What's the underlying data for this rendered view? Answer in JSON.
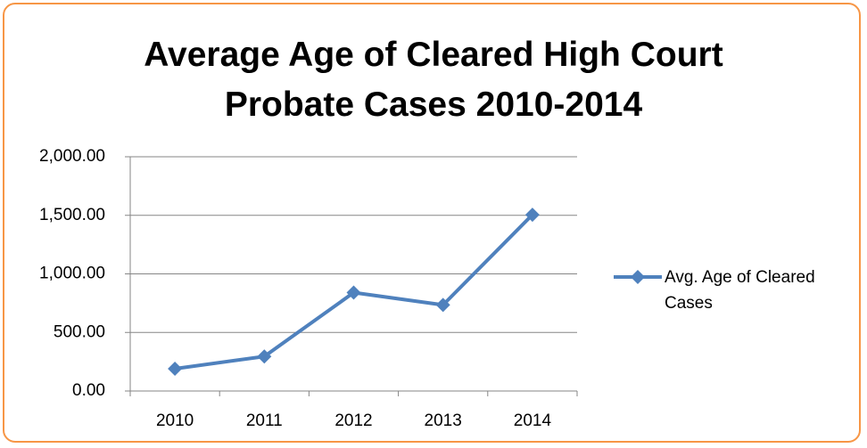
{
  "chart_data": {
    "type": "line",
    "title": "Average Age of Cleared High Court Probate Cases 2010-2014",
    "categories": [
      "2010",
      "2011",
      "2012",
      "2013",
      "2014"
    ],
    "series": [
      {
        "name": "Avg. Age of Cleared Cases",
        "color": "#4f81bd",
        "values": [
          190,
          295,
          840,
          735,
          1505
        ]
      }
    ],
    "ylim": [
      0,
      2000
    ],
    "yticks": [
      {
        "value": 0,
        "label": "0.00"
      },
      {
        "value": 500,
        "label": "500.00"
      },
      {
        "value": 1000,
        "label": "1,000.00"
      },
      {
        "value": 1500,
        "label": "1,500.00"
      },
      {
        "value": 2000,
        "label": "2,000.00"
      }
    ],
    "grid": true,
    "legend": "right"
  }
}
